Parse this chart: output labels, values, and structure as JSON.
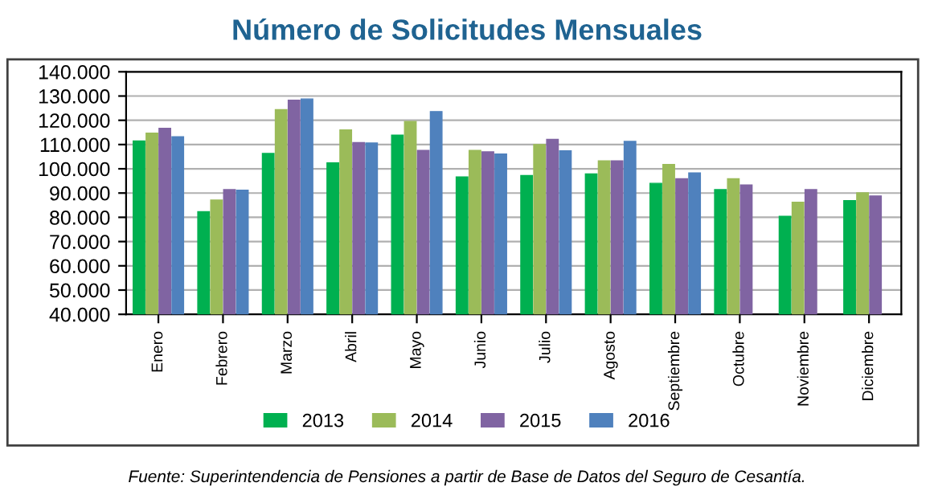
{
  "chart_data": {
    "type": "bar",
    "title": "Número de Solicitudes Mensuales",
    "categories": [
      "Enero",
      "Febrero",
      "Marzo",
      "Abril",
      "Mayo",
      "Junio",
      "Julio",
      "Agosto",
      "Septiembre",
      "Octubre",
      "Noviembre",
      "Diciembre"
    ],
    "series": [
      {
        "name": "2013",
        "color": "#00b050",
        "values": [
          111500,
          82300,
          106300,
          102400,
          113900,
          96600,
          97200,
          97900,
          94000,
          91400,
          80400,
          86900
        ]
      },
      {
        "name": "2014",
        "color": "#9bbb59",
        "values": [
          114700,
          87100,
          124400,
          116000,
          119500,
          107600,
          110000,
          103300,
          101800,
          95900,
          86200,
          90100
        ]
      },
      {
        "name": "2015",
        "color": "#8064a2",
        "values": [
          116700,
          91400,
          128300,
          110800,
          107600,
          107000,
          112100,
          103300,
          95900,
          93300,
          91400,
          88800
        ]
      },
      {
        "name": "2016",
        "color": "#4f81bd",
        "values": [
          113200,
          91200,
          128800,
          110600,
          123600,
          106100,
          107400,
          111300,
          98300,
          null,
          null,
          null
        ]
      }
    ],
    "ylim": [
      40000,
      140000
    ],
    "yticks": [
      {
        "value": 40000,
        "label": "40.000"
      },
      {
        "value": 50000,
        "label": "50.000"
      },
      {
        "value": 60000,
        "label": "60.000"
      },
      {
        "value": 70000,
        "label": "70.000"
      },
      {
        "value": 80000,
        "label": "80.000"
      },
      {
        "value": 90000,
        "label": "90.000"
      },
      {
        "value": 100000,
        "label": "100.000"
      },
      {
        "value": 110000,
        "label": "110.000"
      },
      {
        "value": 120000,
        "label": "120.000"
      },
      {
        "value": 130000,
        "label": "130.000"
      },
      {
        "value": 140000,
        "label": "140.000"
      }
    ],
    "grid": "y",
    "legend": "bottom",
    "annotations": [
      "Fuente: Superintendencia de Pensiones a partir de Base de Datos del Seguro de Cesantía."
    ]
  }
}
